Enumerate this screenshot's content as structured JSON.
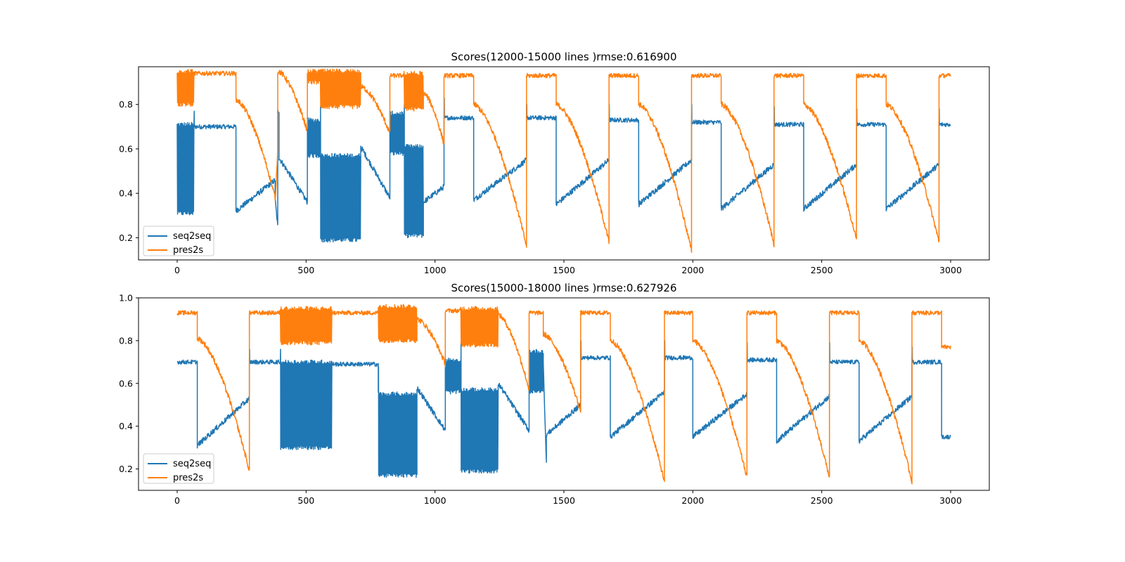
{
  "chart_data": [
    {
      "type": "line",
      "title": "Scores(12000-15000 lines )rmse:0.616900",
      "xlabel": "",
      "ylabel": "",
      "xlim": [
        -150,
        3150
      ],
      "ylim": [
        0.1,
        0.97
      ],
      "xticks": [
        0,
        500,
        1000,
        1500,
        2000,
        2500,
        3000
      ],
      "yticks": [
        0.2,
        0.4,
        0.6,
        0.8
      ],
      "legend_position": "lower-left",
      "grid": false,
      "series": [
        {
          "name": "seq2seq",
          "color": "#1f77b4",
          "segments": [
            {
              "x0": 0,
              "x1": 65,
              "type": "osc",
              "lo": 0.31,
              "hi": 0.71
            },
            {
              "x0": 65,
              "x1": 228,
              "type": "flat",
              "v": 0.7,
              "spike": 0.77
            },
            {
              "x0": 228,
              "x1": 380,
              "type": "ramp",
              "from": 0.32,
              "to": 0.46
            },
            {
              "x0": 380,
              "x1": 390,
              "type": "ramp",
              "from": 0.37,
              "to": 0.25
            },
            {
              "x0": 390,
              "x1": 395,
              "type": "flat",
              "v": 0.77
            },
            {
              "x0": 395,
              "x1": 505,
              "type": "ramp",
              "from": 0.56,
              "to": 0.36
            },
            {
              "x0": 505,
              "x1": 555,
              "type": "osc",
              "lo": 0.57,
              "hi": 0.73
            },
            {
              "x0": 555,
              "x1": 712,
              "type": "osc",
              "lo": 0.19,
              "hi": 0.57,
              "spike": 0.79
            },
            {
              "x0": 712,
              "x1": 825,
              "type": "ramp",
              "from": 0.61,
              "to": 0.38
            },
            {
              "x0": 825,
              "x1": 880,
              "type": "osc",
              "lo": 0.58,
              "hi": 0.76
            },
            {
              "x0": 880,
              "x1": 955,
              "type": "osc",
              "lo": 0.21,
              "hi": 0.61,
              "spike": 0.8
            },
            {
              "x0": 955,
              "x1": 1035,
              "type": "ramp",
              "from": 0.36,
              "to": 0.43
            },
            {
              "x0": 1035,
              "x1": 1150,
              "type": "flat",
              "v": 0.74,
              "spike": 0.83
            },
            {
              "x0": 1150,
              "x1": 1355,
              "type": "ramp",
              "from": 0.37,
              "to": 0.55
            },
            {
              "x0": 1355,
              "x1": 1470,
              "type": "flat",
              "v": 0.74,
              "spike": 0.8
            },
            {
              "x0": 1470,
              "x1": 1675,
              "type": "ramp",
              "from": 0.35,
              "to": 0.55
            },
            {
              "x0": 1675,
              "x1": 1790,
              "type": "flat",
              "v": 0.73,
              "spike": 0.8
            },
            {
              "x0": 1790,
              "x1": 1995,
              "type": "ramp",
              "from": 0.35,
              "to": 0.55
            },
            {
              "x0": 1995,
              "x1": 2110,
              "type": "flat",
              "v": 0.72,
              "spike": 0.8
            },
            {
              "x0": 2110,
              "x1": 2315,
              "type": "ramp",
              "from": 0.33,
              "to": 0.53
            },
            {
              "x0": 2315,
              "x1": 2430,
              "type": "flat",
              "v": 0.71,
              "spike": 0.79
            },
            {
              "x0": 2430,
              "x1": 2635,
              "type": "ramp",
              "from": 0.33,
              "to": 0.53
            },
            {
              "x0": 2635,
              "x1": 2750,
              "type": "flat",
              "v": 0.71,
              "spike": 0.78
            },
            {
              "x0": 2750,
              "x1": 2955,
              "type": "ramp",
              "from": 0.33,
              "to": 0.53
            },
            {
              "x0": 2955,
              "x1": 3000,
              "type": "flat",
              "v": 0.71,
              "spike": 0.78
            }
          ]
        },
        {
          "name": "pres2s",
          "color": "#ff7f0e",
          "segments": [
            {
              "x0": 0,
              "x1": 65,
              "type": "osc",
              "lo": 0.8,
              "hi": 0.95
            },
            {
              "x0": 65,
              "x1": 228,
              "type": "flat",
              "v": 0.94
            },
            {
              "x0": 228,
              "x1": 380,
              "type": "decay",
              "from": 0.82,
              "to": 0.38
            },
            {
              "x0": 380,
              "x1": 390,
              "type": "ramp",
              "from": 0.36,
              "to": 0.6
            },
            {
              "x0": 390,
              "x1": 505,
              "type": "decay",
              "from": 0.95,
              "to": 0.68
            },
            {
              "x0": 505,
              "x1": 555,
              "type": "osc",
              "lo": 0.9,
              "hi": 0.95
            },
            {
              "x0": 555,
              "x1": 712,
              "type": "osc",
              "lo": 0.79,
              "hi": 0.95
            },
            {
              "x0": 712,
              "x1": 825,
              "type": "decay",
              "from": 0.88,
              "to": 0.67
            },
            {
              "x0": 825,
              "x1": 880,
              "type": "flat",
              "v": 0.93
            },
            {
              "x0": 880,
              "x1": 955,
              "type": "osc",
              "lo": 0.78,
              "hi": 0.94
            },
            {
              "x0": 955,
              "x1": 1035,
              "type": "decay",
              "from": 0.85,
              "to": 0.62
            },
            {
              "x0": 1035,
              "x1": 1150,
              "type": "flat",
              "v": 0.93
            },
            {
              "x0": 1150,
              "x1": 1355,
              "type": "decay",
              "from": 0.8,
              "to": 0.16
            },
            {
              "x0": 1355,
              "x1": 1470,
              "type": "flat",
              "v": 0.93
            },
            {
              "x0": 1470,
              "x1": 1675,
              "type": "decay",
              "from": 0.8,
              "to": 0.18
            },
            {
              "x0": 1675,
              "x1": 1790,
              "type": "flat",
              "v": 0.93
            },
            {
              "x0": 1790,
              "x1": 1995,
              "type": "decay",
              "from": 0.8,
              "to": 0.14
            },
            {
              "x0": 1995,
              "x1": 2110,
              "type": "flat",
              "v": 0.93
            },
            {
              "x0": 2110,
              "x1": 2315,
              "type": "decay",
              "from": 0.8,
              "to": 0.17
            },
            {
              "x0": 2315,
              "x1": 2430,
              "type": "flat",
              "v": 0.93
            },
            {
              "x0": 2430,
              "x1": 2635,
              "type": "decay",
              "from": 0.8,
              "to": 0.19
            },
            {
              "x0": 2635,
              "x1": 2750,
              "type": "flat",
              "v": 0.93
            },
            {
              "x0": 2750,
              "x1": 2955,
              "type": "decay",
              "from": 0.8,
              "to": 0.18
            },
            {
              "x0": 2955,
              "x1": 3000,
              "type": "flat",
              "v": 0.93
            }
          ]
        }
      ]
    },
    {
      "type": "line",
      "title": "Scores(15000-18000 lines )rmse:0.627926",
      "xlabel": "",
      "ylabel": "",
      "xlim": [
        -150,
        3150
      ],
      "ylim": [
        0.1,
        1.0
      ],
      "xticks": [
        0,
        500,
        1000,
        1500,
        2000,
        2500,
        3000
      ],
      "yticks": [
        0.2,
        0.4,
        0.6,
        0.8,
        1.0
      ],
      "legend_position": "lower-left",
      "grid": false,
      "series": [
        {
          "name": "seq2seq",
          "color": "#1f77b4",
          "segments": [
            {
              "x0": 0,
              "x1": 78,
              "type": "flat",
              "v": 0.7
            },
            {
              "x0": 78,
              "x1": 280,
              "type": "ramp",
              "from": 0.31,
              "to": 0.53
            },
            {
              "x0": 280,
              "x1": 400,
              "type": "flat",
              "v": 0.7,
              "spike": 0.76
            },
            {
              "x0": 400,
              "x1": 600,
              "type": "osc",
              "lo": 0.3,
              "hi": 0.7,
              "spike": 0.76
            },
            {
              "x0": 600,
              "x1": 780,
              "type": "flat",
              "v": 0.69
            },
            {
              "x0": 780,
              "x1": 930,
              "type": "osc",
              "lo": 0.17,
              "hi": 0.55,
              "spike": 0.68
            },
            {
              "x0": 930,
              "x1": 1040,
              "type": "ramp",
              "from": 0.58,
              "to": 0.38
            },
            {
              "x0": 1040,
              "x1": 1100,
              "type": "osc",
              "lo": 0.56,
              "hi": 0.71
            },
            {
              "x0": 1100,
              "x1": 1245,
              "type": "osc",
              "lo": 0.19,
              "hi": 0.57,
              "spike": 0.79
            },
            {
              "x0": 1245,
              "x1": 1365,
              "type": "ramp",
              "from": 0.6,
              "to": 0.38
            },
            {
              "x0": 1365,
              "x1": 1420,
              "type": "osc",
              "lo": 0.56,
              "hi": 0.75
            },
            {
              "x0": 1420,
              "x1": 1432,
              "type": "ramp",
              "from": 0.7,
              "to": 0.22
            },
            {
              "x0": 1432,
              "x1": 1565,
              "type": "ramp",
              "from": 0.36,
              "to": 0.5
            },
            {
              "x0": 1565,
              "x1": 1680,
              "type": "flat",
              "v": 0.72,
              "spike": 0.8
            },
            {
              "x0": 1680,
              "x1": 1890,
              "type": "ramp",
              "from": 0.35,
              "to": 0.56
            },
            {
              "x0": 1890,
              "x1": 2000,
              "type": "flat",
              "v": 0.72,
              "spike": 0.8
            },
            {
              "x0": 2000,
              "x1": 2210,
              "type": "ramp",
              "from": 0.35,
              "to": 0.55
            },
            {
              "x0": 2210,
              "x1": 2325,
              "type": "flat",
              "v": 0.71,
              "spike": 0.79
            },
            {
              "x0": 2325,
              "x1": 2530,
              "type": "ramp",
              "from": 0.33,
              "to": 0.54
            },
            {
              "x0": 2530,
              "x1": 2645,
              "type": "flat",
              "v": 0.7,
              "spike": 0.79
            },
            {
              "x0": 2645,
              "x1": 2850,
              "type": "ramp",
              "from": 0.33,
              "to": 0.54
            },
            {
              "x0": 2850,
              "x1": 2965,
              "type": "flat",
              "v": 0.7,
              "spike": 0.77
            },
            {
              "x0": 2965,
              "x1": 3000,
              "type": "flat",
              "v": 0.35
            }
          ]
        },
        {
          "name": "pres2s",
          "color": "#ff7f0e",
          "segments": [
            {
              "x0": 0,
              "x1": 78,
              "type": "flat",
              "v": 0.93
            },
            {
              "x0": 78,
              "x1": 280,
              "type": "decay",
              "from": 0.81,
              "to": 0.19
            },
            {
              "x0": 280,
              "x1": 400,
              "type": "flat",
              "v": 0.93
            },
            {
              "x0": 400,
              "x1": 600,
              "type": "osc",
              "lo": 0.79,
              "hi": 0.95
            },
            {
              "x0": 600,
              "x1": 780,
              "type": "flat",
              "v": 0.93
            },
            {
              "x0": 780,
              "x1": 930,
              "type": "osc",
              "lo": 0.8,
              "hi": 0.96
            },
            {
              "x0": 930,
              "x1": 1040,
              "type": "decay",
              "from": 0.9,
              "to": 0.69
            },
            {
              "x0": 1040,
              "x1": 1100,
              "type": "flat",
              "v": 0.94
            },
            {
              "x0": 1100,
              "x1": 1245,
              "type": "osc",
              "lo": 0.78,
              "hi": 0.95
            },
            {
              "x0": 1245,
              "x1": 1365,
              "type": "decay",
              "from": 0.92,
              "to": 0.57
            },
            {
              "x0": 1365,
              "x1": 1420,
              "type": "flat",
              "v": 0.93
            },
            {
              "x0": 1420,
              "x1": 1565,
              "type": "decay",
              "from": 0.83,
              "to": 0.47
            },
            {
              "x0": 1565,
              "x1": 1680,
              "type": "flat",
              "v": 0.93
            },
            {
              "x0": 1680,
              "x1": 1890,
              "type": "decay",
              "from": 0.8,
              "to": 0.14
            },
            {
              "x0": 1890,
              "x1": 2000,
              "type": "flat",
              "v": 0.93
            },
            {
              "x0": 2000,
              "x1": 2210,
              "type": "decay",
              "from": 0.8,
              "to": 0.16
            },
            {
              "x0": 2210,
              "x1": 2325,
              "type": "flat",
              "v": 0.93
            },
            {
              "x0": 2325,
              "x1": 2530,
              "type": "decay",
              "from": 0.8,
              "to": 0.16
            },
            {
              "x0": 2530,
              "x1": 2645,
              "type": "flat",
              "v": 0.93
            },
            {
              "x0": 2645,
              "x1": 2850,
              "type": "decay",
              "from": 0.8,
              "to": 0.14
            },
            {
              "x0": 2850,
              "x1": 2965,
              "type": "flat",
              "v": 0.93
            },
            {
              "x0": 2965,
              "x1": 3000,
              "type": "flat",
              "v": 0.77
            }
          ]
        }
      ]
    }
  ]
}
